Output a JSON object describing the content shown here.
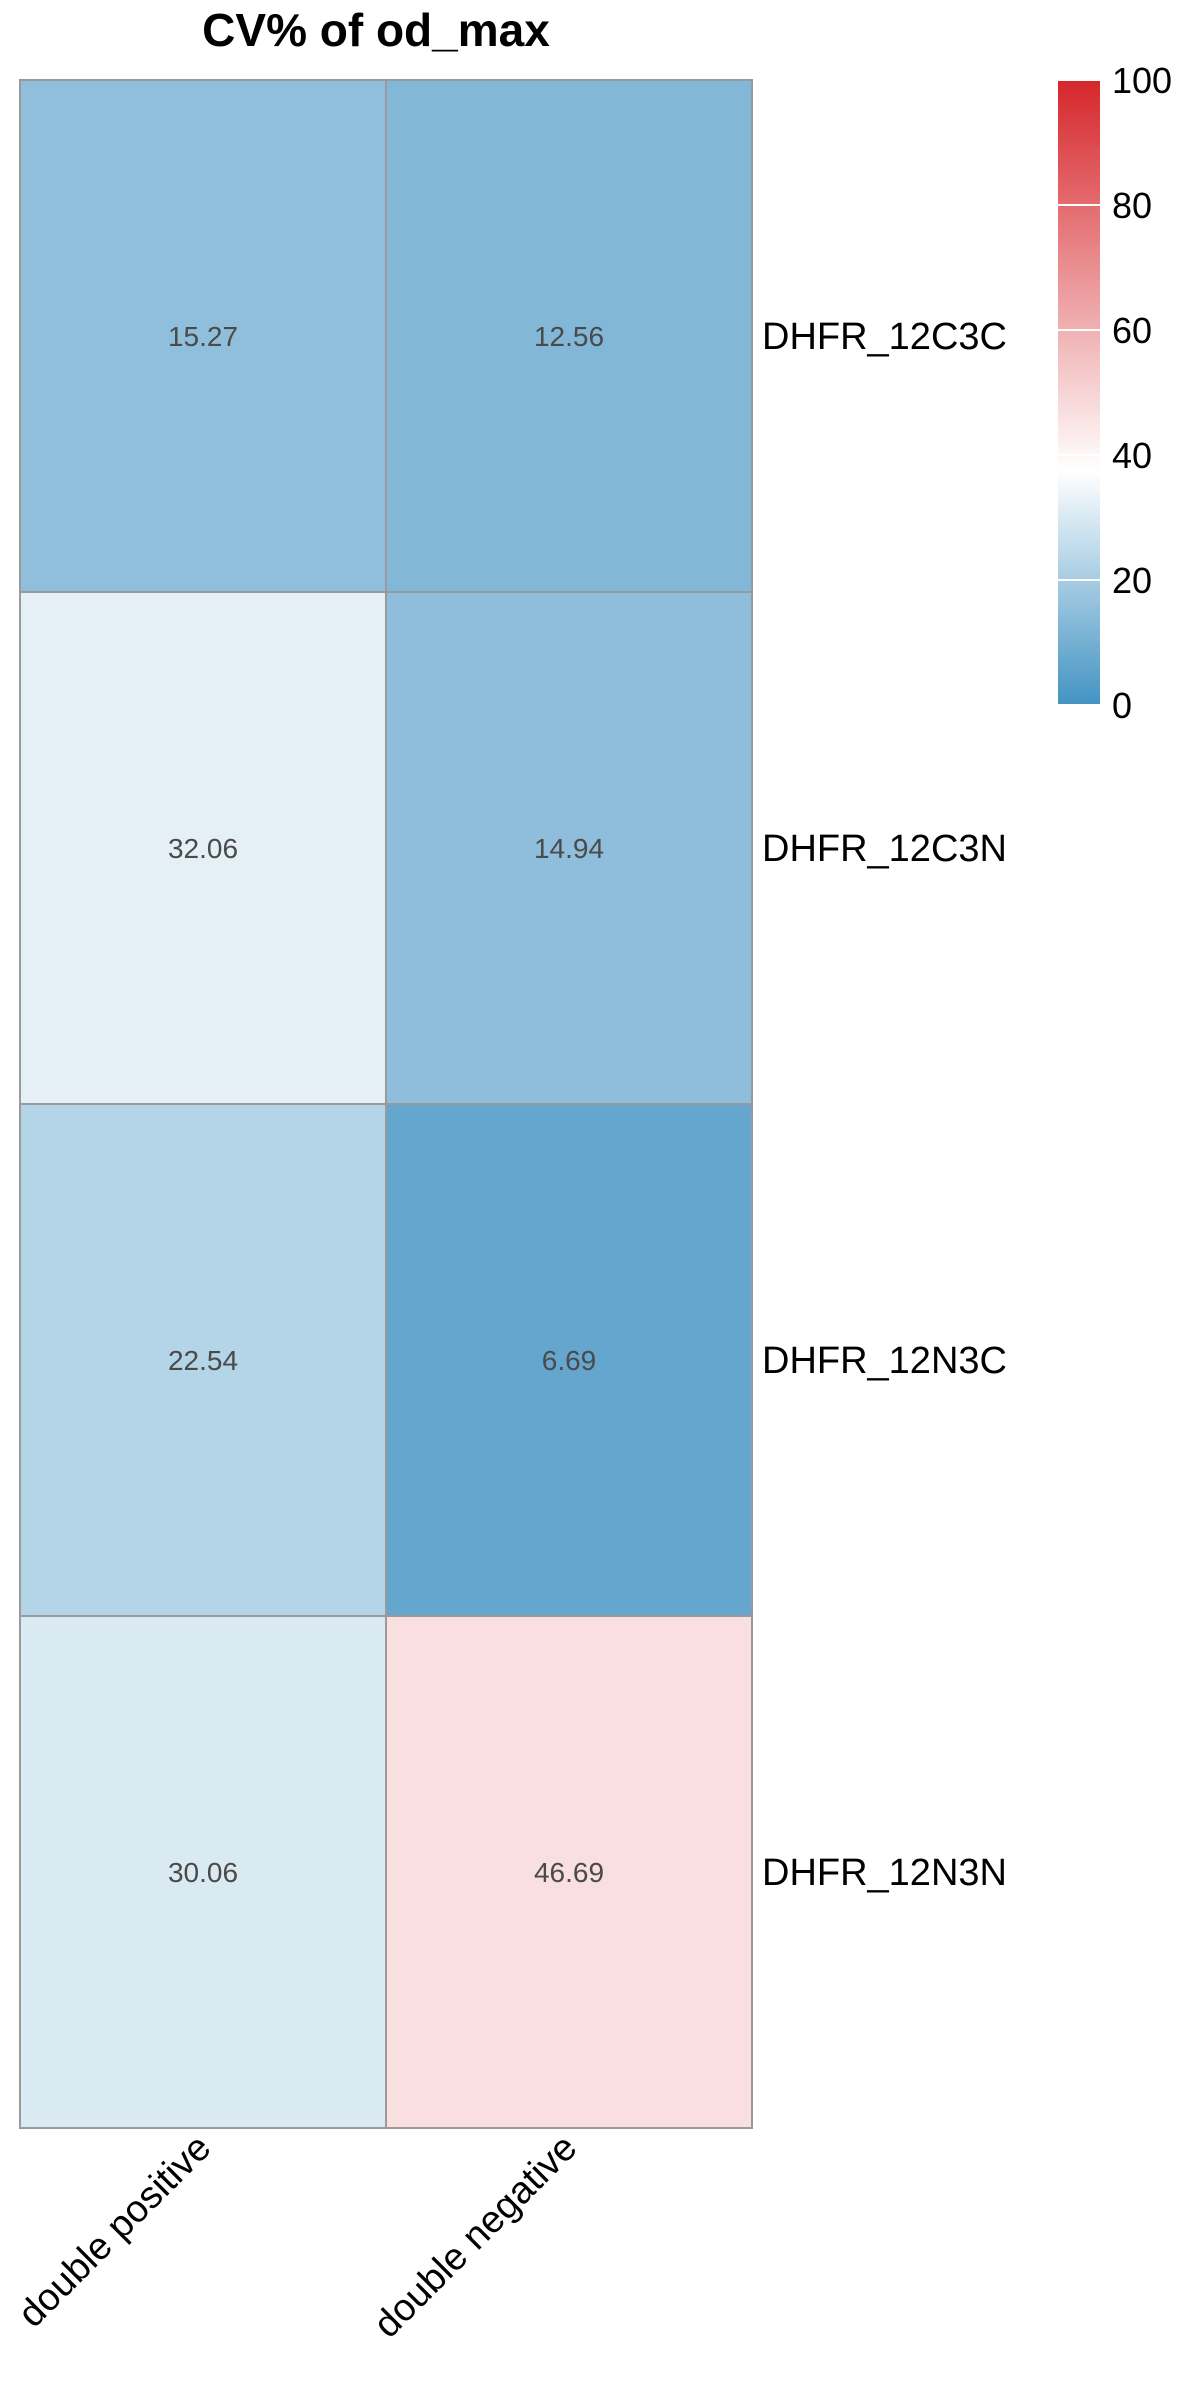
{
  "chart_data": {
    "type": "heatmap",
    "title": "CV% of  od_max",
    "rows": [
      "DHFR_12C3C",
      "DHFR_12C3N",
      "DHFR_12N3C",
      "DHFR_12N3N"
    ],
    "columns": [
      "double positive",
      "double negative"
    ],
    "values": [
      [
        15.27,
        12.56
      ],
      [
        32.06,
        14.94
      ],
      [
        22.54,
        6.69
      ],
      [
        30.06,
        46.69
      ]
    ],
    "colorbar": {
      "range": [
        0,
        100
      ],
      "ticks": [
        0,
        20,
        40,
        60,
        80,
        100
      ],
      "low_color": "#4393c3",
      "mid_color": "#ffffff",
      "high_color": "#d6262b",
      "mid_value": 37.5
    }
  }
}
